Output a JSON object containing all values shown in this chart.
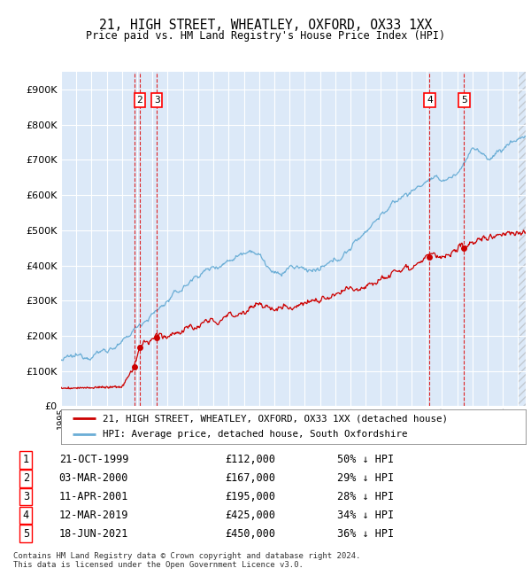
{
  "title": "21, HIGH STREET, WHEATLEY, OXFORD, OX33 1XX",
  "subtitle": "Price paid vs. HM Land Registry's House Price Index (HPI)",
  "ylim": [
    0,
    950000
  ],
  "yticks": [
    0,
    100000,
    200000,
    300000,
    400000,
    500000,
    600000,
    700000,
    800000,
    900000
  ],
  "ytick_labels": [
    "£0",
    "£100K",
    "£200K",
    "£300K",
    "£400K",
    "£500K",
    "£600K",
    "£700K",
    "£800K",
    "£900K"
  ],
  "bg_color": "#dce9f8",
  "grid_color": "#ffffff",
  "sale_color": "#cc0000",
  "hpi_color": "#6baed6",
  "transactions": [
    {
      "id": 1,
      "date": "21-OCT-1999",
      "year": 1999.81,
      "price": 112000,
      "pct": "50% ↓ HPI"
    },
    {
      "id": 2,
      "date": "03-MAR-2000",
      "year": 2000.17,
      "price": 167000,
      "pct": "29% ↓ HPI"
    },
    {
      "id": 3,
      "date": "11-APR-2001",
      "year": 2001.28,
      "price": 195000,
      "pct": "28% ↓ HPI"
    },
    {
      "id": 4,
      "date": "12-MAR-2019",
      "year": 2019.19,
      "price": 425000,
      "pct": "34% ↓ HPI"
    },
    {
      "id": 5,
      "date": "18-JUN-2021",
      "year": 2021.46,
      "price": 450000,
      "pct": "36% ↓ HPI"
    }
  ],
  "legend_sale": "21, HIGH STREET, WHEATLEY, OXFORD, OX33 1XX (detached house)",
  "legend_hpi": "HPI: Average price, detached house, South Oxfordshire",
  "footer1": "Contains HM Land Registry data © Crown copyright and database right 2024.",
  "footer2": "This data is licensed under the Open Government Licence v3.0.",
  "xmin": 1995.0,
  "xmax": 2025.5,
  "hpi_keypoints": [
    [
      1995.0,
      130000
    ],
    [
      1997.0,
      148000
    ],
    [
      1999.0,
      175000
    ],
    [
      2000.17,
      235000
    ],
    [
      2001.28,
      270000
    ],
    [
      2002.0,
      300000
    ],
    [
      2003.0,
      335000
    ],
    [
      2004.0,
      375000
    ],
    [
      2005.0,
      395000
    ],
    [
      2006.0,
      415000
    ],
    [
      2007.0,
      440000
    ],
    [
      2007.5,
      450000
    ],
    [
      2008.0,
      430000
    ],
    [
      2009.0,
      370000
    ],
    [
      2009.5,
      375000
    ],
    [
      2010.0,
      395000
    ],
    [
      2011.0,
      390000
    ],
    [
      2012.0,
      385000
    ],
    [
      2013.0,
      410000
    ],
    [
      2014.0,
      450000
    ],
    [
      2015.0,
      500000
    ],
    [
      2016.0,
      545000
    ],
    [
      2017.0,
      580000
    ],
    [
      2017.5,
      600000
    ],
    [
      2018.0,
      610000
    ],
    [
      2019.0,
      640000
    ],
    [
      2019.19,
      645000
    ],
    [
      2020.0,
      640000
    ],
    [
      2021.0,
      660000
    ],
    [
      2021.46,
      690000
    ],
    [
      2022.0,
      740000
    ],
    [
      2022.5,
      720000
    ],
    [
      2023.0,
      700000
    ],
    [
      2023.5,
      720000
    ],
    [
      2024.0,
      730000
    ],
    [
      2024.5,
      750000
    ],
    [
      2025.0,
      760000
    ],
    [
      2025.5,
      770000
    ]
  ],
  "sale_keypoints": [
    [
      1995.0,
      50000
    ],
    [
      1999.0,
      55000
    ],
    [
      1999.81,
      112000
    ],
    [
      2000.17,
      167000
    ],
    [
      2001.28,
      195000
    ],
    [
      2005.0,
      240000
    ],
    [
      2008.0,
      290000
    ],
    [
      2009.0,
      270000
    ],
    [
      2010.0,
      290000
    ],
    [
      2013.0,
      310000
    ],
    [
      2015.0,
      350000
    ],
    [
      2017.0,
      385000
    ],
    [
      2019.19,
      425000
    ],
    [
      2020.0,
      420000
    ],
    [
      2021.0,
      430000
    ],
    [
      2021.46,
      450000
    ],
    [
      2022.0,
      470000
    ],
    [
      2023.0,
      480000
    ],
    [
      2024.0,
      490000
    ],
    [
      2025.5,
      500000
    ]
  ]
}
